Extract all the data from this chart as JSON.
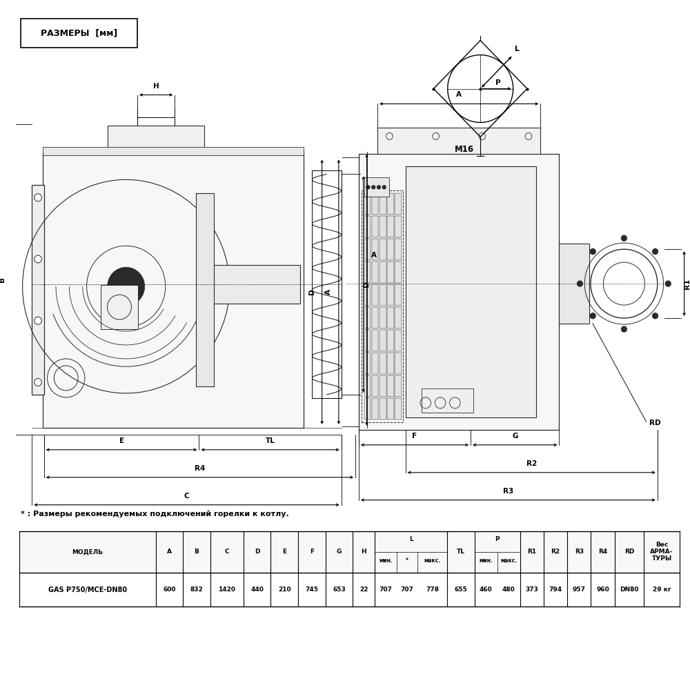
{
  "title_box": "РАЗМЕРЫ  [мм]",
  "footnote": "* : Размеры рекомендуемых подключений горелки к котлу.",
  "row_values": [
    "GAS P750/MCE-DN80",
    "600",
    "832",
    "1420",
    "440",
    "210",
    "745",
    "653",
    "22",
    "707",
    "707",
    "778",
    "655",
    "460",
    "480",
    "373",
    "794",
    "957",
    "960",
    "DN80",
    "29 кг"
  ],
  "bg_color": "#ffffff",
  "line_color": "#000000",
  "text_color": "#000000",
  "draw_color": "#2a2a2a"
}
